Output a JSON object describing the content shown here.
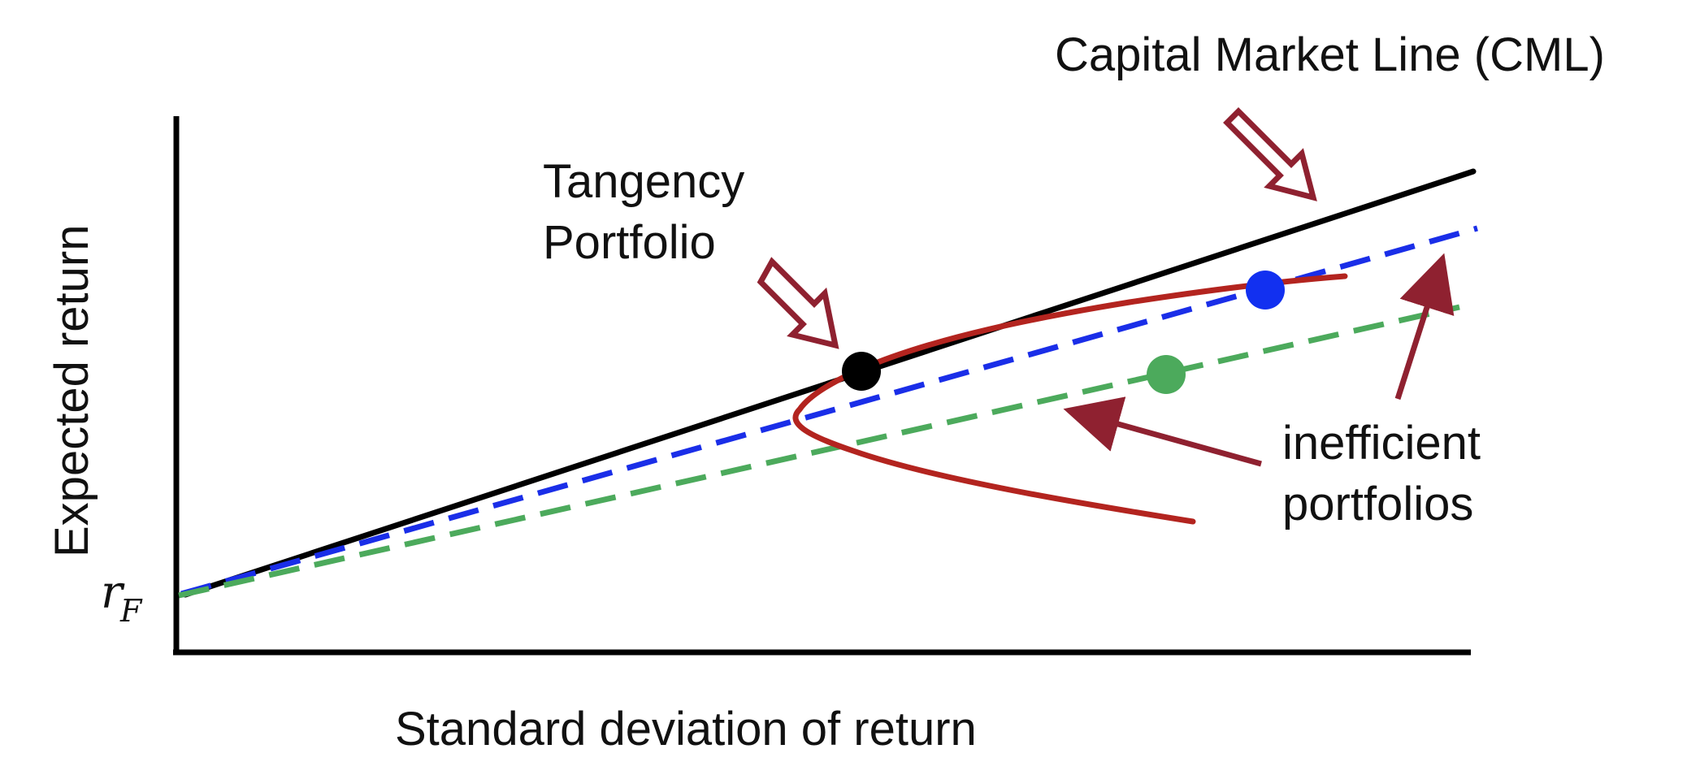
{
  "labels": {
    "cml": "Capital Market Line (CML)",
    "tangency_line1": "Tangency",
    "tangency_line2": "Portfolio",
    "inefficient_line1": "inefficient",
    "inefficient_line2": "portfolios",
    "y_axis": "Expected return",
    "x_axis": "Standard deviation of return",
    "risk_free_base": "r",
    "risk_free_sub": "F"
  },
  "colors": {
    "axis": "#000000",
    "cml_line": "#000000",
    "frontier": "#b3241f",
    "blue_line": "#1a2ee8",
    "green_line": "#4caa5c",
    "tangency_point": "#000000",
    "blue_point": "#1230f0",
    "green_point": "#4caa5c",
    "arrow": "#8f2130"
  },
  "icons": {
    "cml_pointer": "hollow-arrow-icon",
    "tangency_pointer": "hollow-arrow-icon",
    "inefficient_pointers": "arrow-icon"
  }
}
